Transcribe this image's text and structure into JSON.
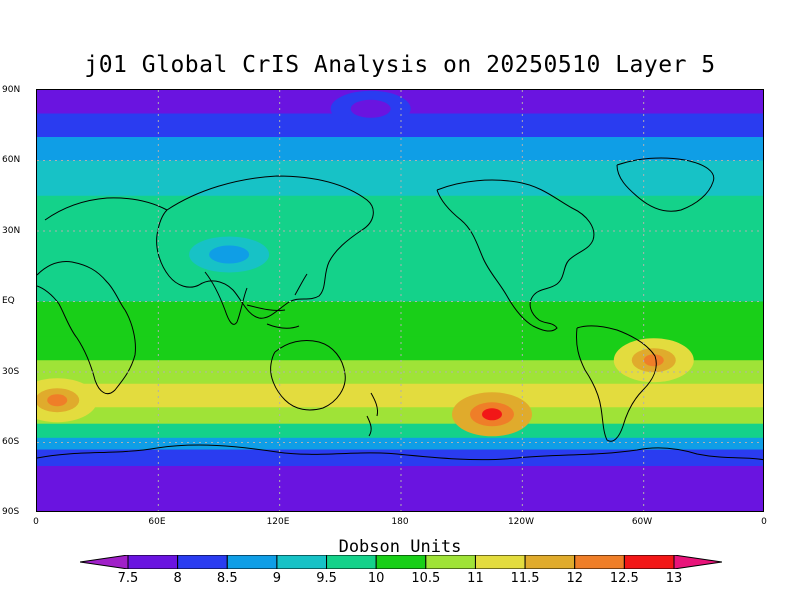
{
  "title": "j01 Global CrIS Analysis on 20250510 Layer 5",
  "colorbar": {
    "title": "Dobson Units",
    "labels": [
      "7.5",
      "8",
      "8.5",
      "9",
      "9.5",
      "10",
      "10.5",
      "11",
      "11.5",
      "12",
      "12.5",
      "13"
    ],
    "colors": [
      "#a020c8",
      "#6a14e0",
      "#2a3cf0",
      "#0f9ee6",
      "#17c2c6",
      "#14d28a",
      "#19cf18",
      "#9fe337",
      "#e3dc3e",
      "#e0ab2c",
      "#ef7e28",
      "#f21717",
      "#e8147a"
    ]
  },
  "map": {
    "lat_ticks": [
      "90N",
      "60N",
      "30N",
      "EQ",
      "30S",
      "60S",
      "90S"
    ],
    "lon_ticks": [
      "0",
      "60E",
      "120E",
      "180",
      "120W",
      "60W",
      "0"
    ]
  },
  "chart_data": {
    "type": "heatmap",
    "title": "j01 Global CrIS Analysis on 20250510 Layer 5",
    "units": "Dobson Units",
    "x_range": [
      0,
      360
    ],
    "y_range": [
      -90,
      90
    ],
    "levels": [
      7.5,
      8,
      8.5,
      9,
      9.5,
      10,
      10.5,
      11,
      11.5,
      12,
      12.5,
      13
    ],
    "zonal_profile": [
      {
        "lat": 90,
        "value": 7.8
      },
      {
        "lat": 80,
        "value": 7.9
      },
      {
        "lat": 70,
        "value": 8.3
      },
      {
        "lat": 60,
        "value": 8.8
      },
      {
        "lat": 45,
        "value": 9.5
      },
      {
        "lat": 30,
        "value": 9.8
      },
      {
        "lat": 15,
        "value": 9.7
      },
      {
        "lat": 0,
        "value": 9.9
      },
      {
        "lat": -15,
        "value": 10.2
      },
      {
        "lat": -25,
        "value": 10.7
      },
      {
        "lat": -35,
        "value": 11.0
      },
      {
        "lat": -45,
        "value": 11.2
      },
      {
        "lat": -52,
        "value": 10.4
      },
      {
        "lat": -58,
        "value": 9.4
      },
      {
        "lat": -63,
        "value": 8.3
      },
      {
        "lat": -70,
        "value": 7.9
      },
      {
        "lat": -90,
        "value": 7.8
      }
    ],
    "maxima": [
      {
        "lon": 225,
        "lat": -48,
        "value": 12.5
      },
      {
        "lon": 10,
        "lat": -42,
        "value": 12.0
      },
      {
        "lon": 305,
        "lat": -25,
        "value": 12.0
      }
    ],
    "minima": [
      {
        "lon": 165,
        "lat": 82,
        "value": 7.5
      },
      {
        "lon": 95,
        "lat": 20,
        "value": 8.5
      }
    ]
  }
}
